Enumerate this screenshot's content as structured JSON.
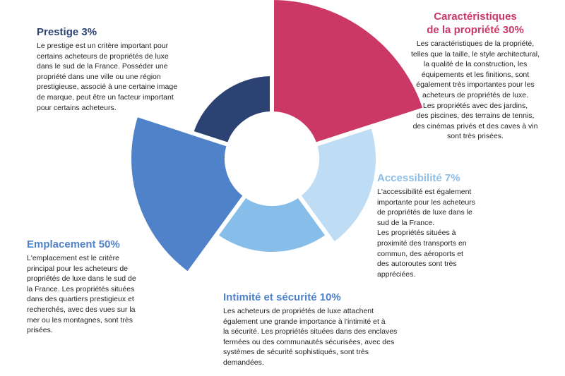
{
  "chart_data": {
    "type": "pie",
    "variant": "rose",
    "series": [
      {
        "id": "car",
        "name": "Caractéristiques de la propriété",
        "title_lines": [
          "Caractéristiques",
          "de la propriété 30%"
        ],
        "value": 30,
        "color": "#cc3866",
        "description": "Les caractéristiques de la propriété,\ntelles que la taille, le style architectural,\nla qualité de la construction, les\néquipements et les finitions, sont\négalement très importantes pour les\nacheteurs de propriétés de luxe.\nLes propriétés avec des jardins,\ndes piscines, des terrains de tennis,\ndes cinémas privés et des caves à vin\nsont très prisées."
      },
      {
        "id": "acc",
        "name": "Accessibilité",
        "title_lines": [
          "Accessibilité 7%"
        ],
        "value": 7,
        "color": "#bedcf4",
        "description": " L'accessibilité est également\nimportante pour les acheteurs\nde propriétés de luxe dans le\nsud de la France.\nLes propriétés situées à\nproximité des transports en\ncommun, des aéroports et\ndes autoroutes sont très\nappréciées."
      },
      {
        "id": "int",
        "name": "Intimité et sécurité",
        "title_lines": [
          "Intimité et sécurité  10%"
        ],
        "value": 10,
        "color": "#86bde9",
        "description": "Les acheteurs de propriétés de luxe attachent\négalement une grande importance à l'intimité et à\nla sécurité. Les propriétés situées dans des enclaves\nfermées ou des communautés sécurisées, avec des\nsystèmes de sécurité sophistiqués, sont très\ndemandées."
      },
      {
        "id": "emp",
        "name": "Emplacement",
        "title_lines": [
          "Emplacement 50%"
        ],
        "value": 50,
        "color": "#4f82c8",
        "description": "L'emplacement est le critère\nprincipal pour les acheteurs de\npropriétés de luxe dans le sud de\nla France. Les propriétés situées\ndans des quartiers prestigieux et\nrecherchés, avec des vues sur la\nmer ou les montagnes, sont très\nprisées."
      },
      {
        "id": "pre",
        "name": "Prestige",
        "title_lines": [
          "Prestige 3%"
        ],
        "value": 3,
        "color": "#2b4272",
        "description": "Le prestige est un critère important pour\ncertains acheteurs de propriétés de luxe\ndans le sud de la France. Posséder une\npropriété dans une ville ou une région\nprestigieuse, associé à une certaine image\nde marque, peut être un facteur important\npour certains acheteurs."
      }
    ]
  },
  "colors": {
    "heading_prestige": "#2b4272",
    "heading_caracteristiques": "#cc3866",
    "heading_accessibilite": "#8ebde6",
    "heading_emplacement": "#4f82c8",
    "heading_intimite": "#4f82c8"
  }
}
